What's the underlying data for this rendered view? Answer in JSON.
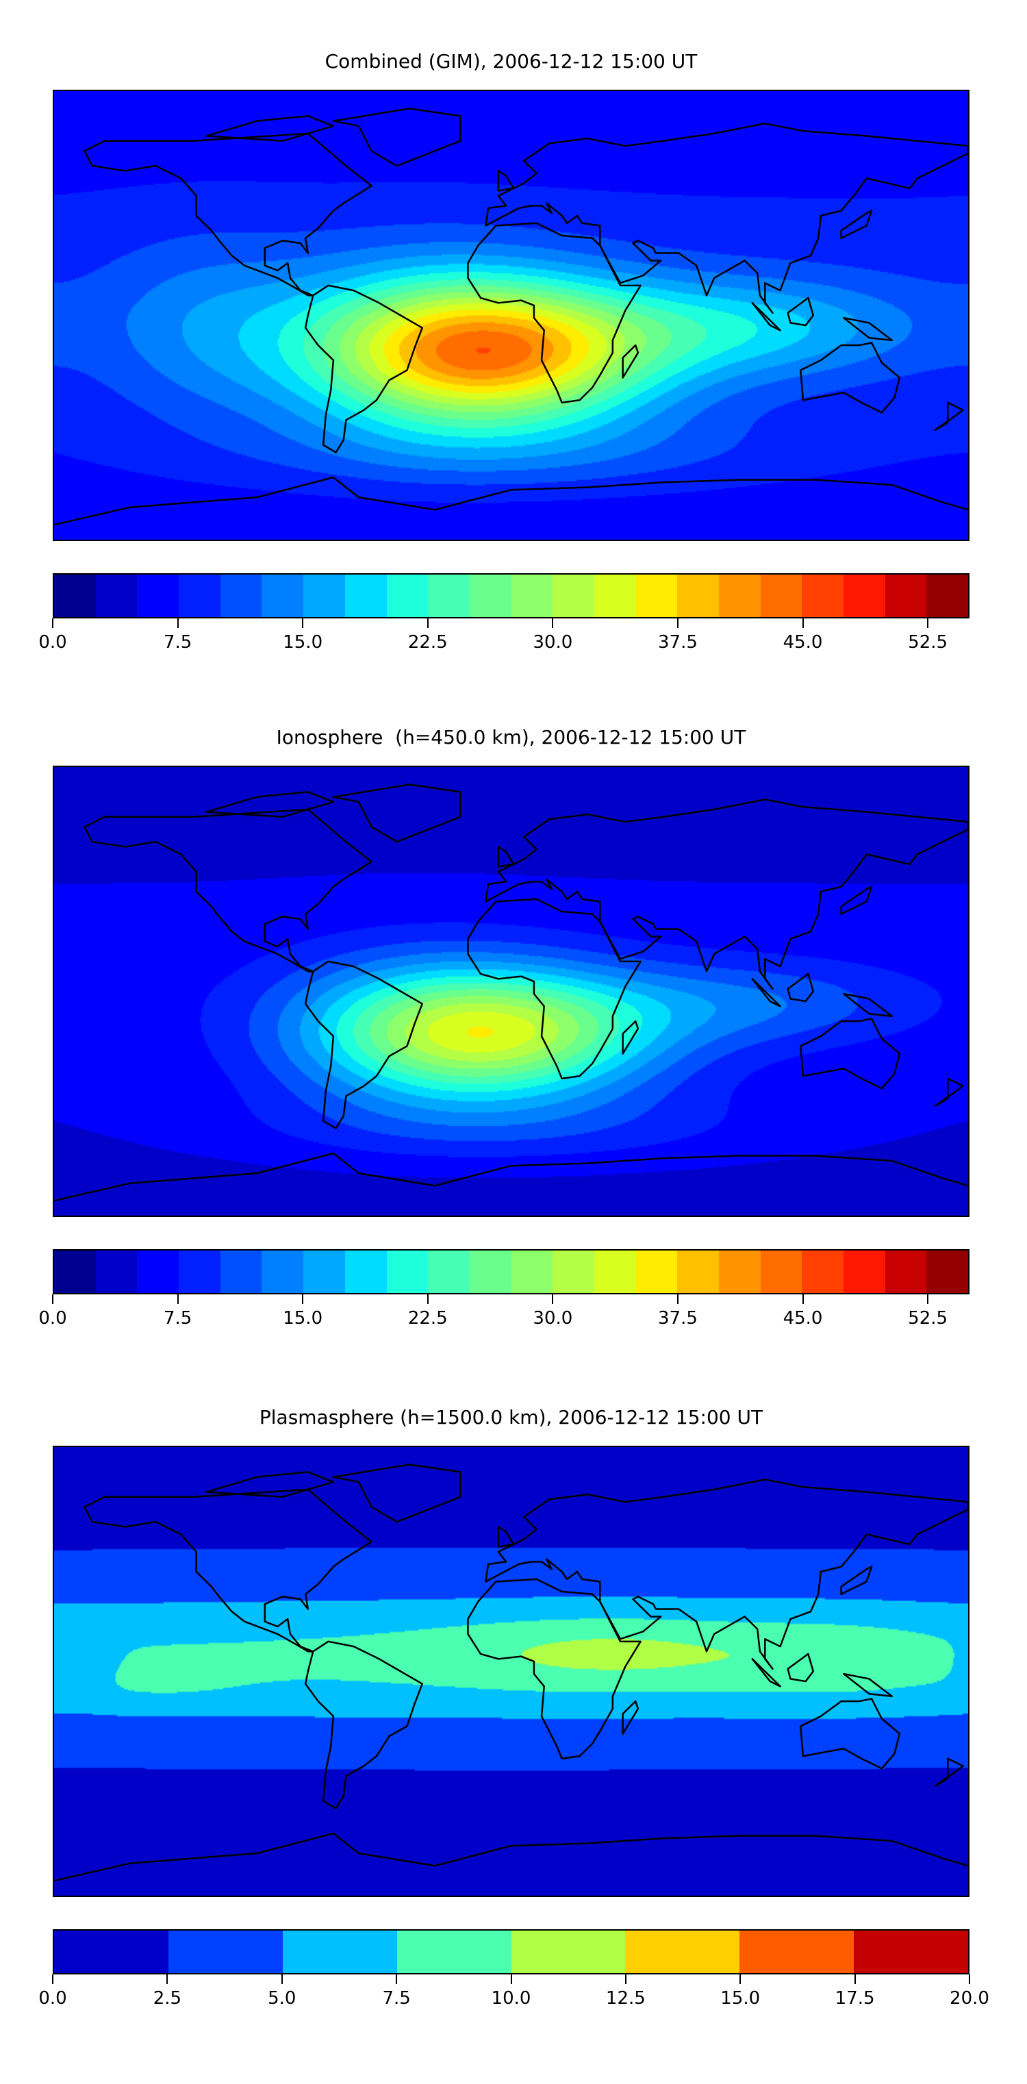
{
  "panels": [
    {
      "id": "combined",
      "title": "Combined (GIM), 2006-12-12 15:00 UT",
      "colorbar": {
        "range": [
          0,
          55
        ],
        "ticks": [
          "0.0",
          "7.5",
          "15.0",
          "22.5",
          "30.0",
          "37.5",
          "45.0",
          "52.5"
        ],
        "tick_values": [
          0,
          7.5,
          15,
          22.5,
          30,
          37.5,
          45,
          52.5
        ],
        "colors": [
          "#000090",
          "#0000c8",
          "#0000ff",
          "#0020ff",
          "#0050ff",
          "#0080ff",
          "#00a8ff",
          "#00dcff",
          "#1effdc",
          "#46ffb4",
          "#6aff8c",
          "#8cff6a",
          "#b4ff46",
          "#d8ff20",
          "#ffec00",
          "#ffc000",
          "#ff9400",
          "#ff6c00",
          "#ff4000",
          "#ff1800",
          "#c80000",
          "#940000"
        ]
      }
    },
    {
      "id": "ionosphere",
      "title": "Ionosphere  (h=450.0 km), 2006-12-12 15:00 UT",
      "colorbar": {
        "range": [
          0,
          55
        ],
        "ticks": [
          "0.0",
          "7.5",
          "15.0",
          "22.5",
          "30.0",
          "37.5",
          "45.0",
          "52.5"
        ],
        "tick_values": [
          0,
          7.5,
          15,
          22.5,
          30,
          37.5,
          45,
          52.5
        ],
        "colors": [
          "#000090",
          "#0000c8",
          "#0000ff",
          "#0020ff",
          "#0050ff",
          "#0080ff",
          "#00a8ff",
          "#00dcff",
          "#1effdc",
          "#46ffb4",
          "#6aff8c",
          "#8cff6a",
          "#b4ff46",
          "#d8ff20",
          "#ffec00",
          "#ffc000",
          "#ff9400",
          "#ff6c00",
          "#ff4000",
          "#ff1800",
          "#c80000",
          "#940000"
        ]
      }
    },
    {
      "id": "plasmasphere",
      "title": "Plasmasphere (h=1500.0 km), 2006-12-12 15:00 UT",
      "colorbar": {
        "range": [
          0,
          20
        ],
        "ticks": [
          "0.0",
          "2.5",
          "5.0",
          "7.5",
          "10.0",
          "12.5",
          "15.0",
          "17.5",
          "20.0"
        ],
        "tick_values": [
          0,
          2.5,
          5,
          7.5,
          10,
          12.5,
          15,
          17.5,
          20
        ],
        "colors": [
          "#0000c8",
          "#0040ff",
          "#00c0ff",
          "#4affb0",
          "#b0ff46",
          "#ffd000",
          "#ff5c00",
          "#c40000"
        ]
      }
    }
  ]
}
